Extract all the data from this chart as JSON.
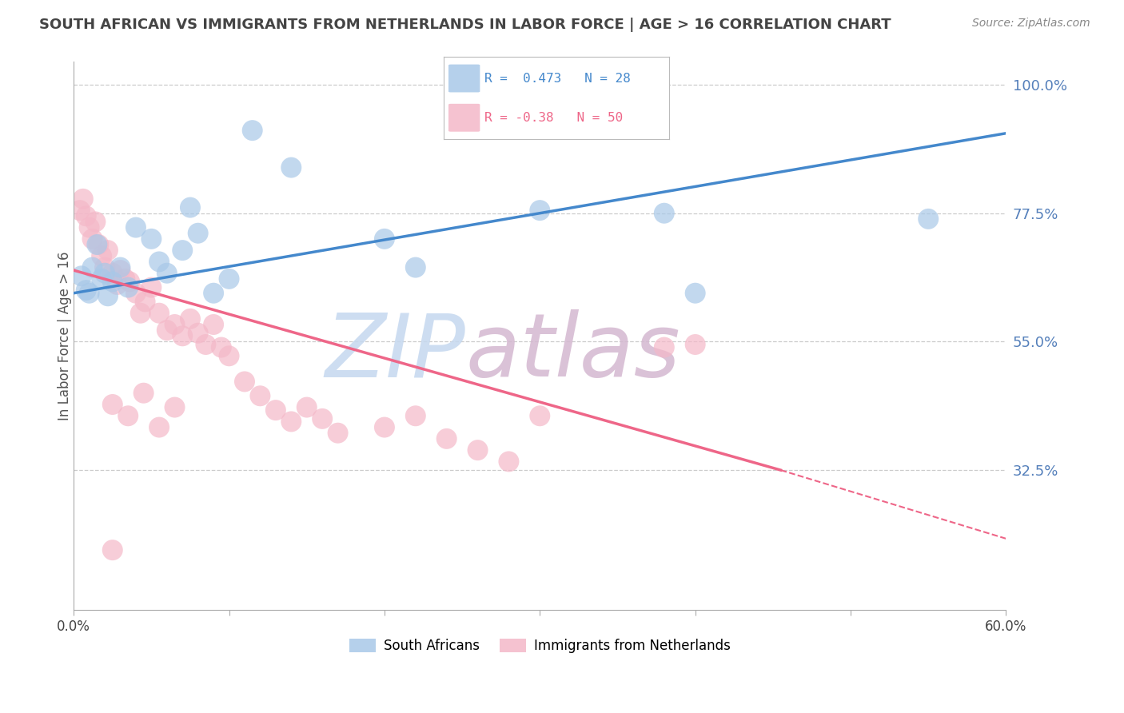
{
  "title": "SOUTH AFRICAN VS IMMIGRANTS FROM NETHERLANDS IN LABOR FORCE | AGE > 16 CORRELATION CHART",
  "source": "Source: ZipAtlas.com",
  "ylabel": "In Labor Force | Age > 16",
  "ytick_labels": [
    "100.0%",
    "77.5%",
    "55.0%",
    "32.5%"
  ],
  "ytick_values": [
    1.0,
    0.775,
    0.55,
    0.325
  ],
  "xmin": 0.0,
  "xmax": 0.6,
  "ymin": 0.08,
  "ymax": 1.04,
  "blue_R": 0.473,
  "blue_N": 28,
  "pink_R": -0.38,
  "pink_N": 50,
  "blue_color": "#a8c8e8",
  "pink_color": "#f4b8c8",
  "blue_line_color": "#4488cc",
  "pink_line_color": "#ee6688",
  "legend_label_blue": "South Africans",
  "legend_label_pink": "Immigrants from Netherlands",
  "blue_line_x0": 0.0,
  "blue_line_y0": 0.635,
  "blue_line_x1": 0.6,
  "blue_line_y1": 0.915,
  "pink_line_x0": 0.0,
  "pink_line_y0": 0.675,
  "pink_line_x1_solid": 0.455,
  "pink_line_y1_solid": 0.325,
  "pink_line_x1_dash": 0.6,
  "pink_line_y1_dash": 0.205,
  "blue_scatter_x": [
    0.005,
    0.008,
    0.01,
    0.012,
    0.015,
    0.018,
    0.02,
    0.022,
    0.025,
    0.03,
    0.035,
    0.04,
    0.05,
    0.055,
    0.06,
    0.07,
    0.075,
    0.08,
    0.09,
    0.1,
    0.115,
    0.14,
    0.2,
    0.22,
    0.38,
    0.4,
    0.55,
    0.3
  ],
  "blue_scatter_y": [
    0.665,
    0.64,
    0.635,
    0.68,
    0.72,
    0.66,
    0.67,
    0.63,
    0.655,
    0.68,
    0.645,
    0.75,
    0.73,
    0.69,
    0.67,
    0.71,
    0.785,
    0.74,
    0.635,
    0.66,
    0.92,
    0.855,
    0.73,
    0.68,
    0.775,
    0.635,
    0.765,
    0.78
  ],
  "pink_scatter_x": [
    0.004,
    0.006,
    0.008,
    0.01,
    0.012,
    0.014,
    0.016,
    0.018,
    0.02,
    0.022,
    0.025,
    0.028,
    0.03,
    0.033,
    0.036,
    0.04,
    0.043,
    0.046,
    0.05,
    0.055,
    0.06,
    0.065,
    0.07,
    0.075,
    0.08,
    0.085,
    0.09,
    0.095,
    0.1,
    0.11,
    0.12,
    0.13,
    0.14,
    0.15,
    0.16,
    0.17,
    0.2,
    0.22,
    0.24,
    0.26,
    0.28,
    0.3,
    0.025,
    0.035,
    0.045,
    0.055,
    0.065,
    0.38,
    0.4,
    0.025
  ],
  "pink_scatter_y": [
    0.78,
    0.8,
    0.77,
    0.75,
    0.73,
    0.76,
    0.72,
    0.7,
    0.68,
    0.71,
    0.67,
    0.65,
    0.675,
    0.66,
    0.655,
    0.635,
    0.6,
    0.62,
    0.645,
    0.6,
    0.57,
    0.58,
    0.56,
    0.59,
    0.565,
    0.545,
    0.58,
    0.54,
    0.525,
    0.48,
    0.455,
    0.43,
    0.41,
    0.435,
    0.415,
    0.39,
    0.4,
    0.42,
    0.38,
    0.36,
    0.34,
    0.42,
    0.44,
    0.42,
    0.46,
    0.4,
    0.435,
    0.54,
    0.545,
    0.185
  ],
  "watermark_zip_color": "#c5d8ef",
  "watermark_atlas_color": "#d4b8d0",
  "background_color": "#ffffff",
  "grid_color": "#cccccc",
  "right_axis_color": "#5580bb",
  "title_color": "#444444",
  "source_color": "#888888"
}
